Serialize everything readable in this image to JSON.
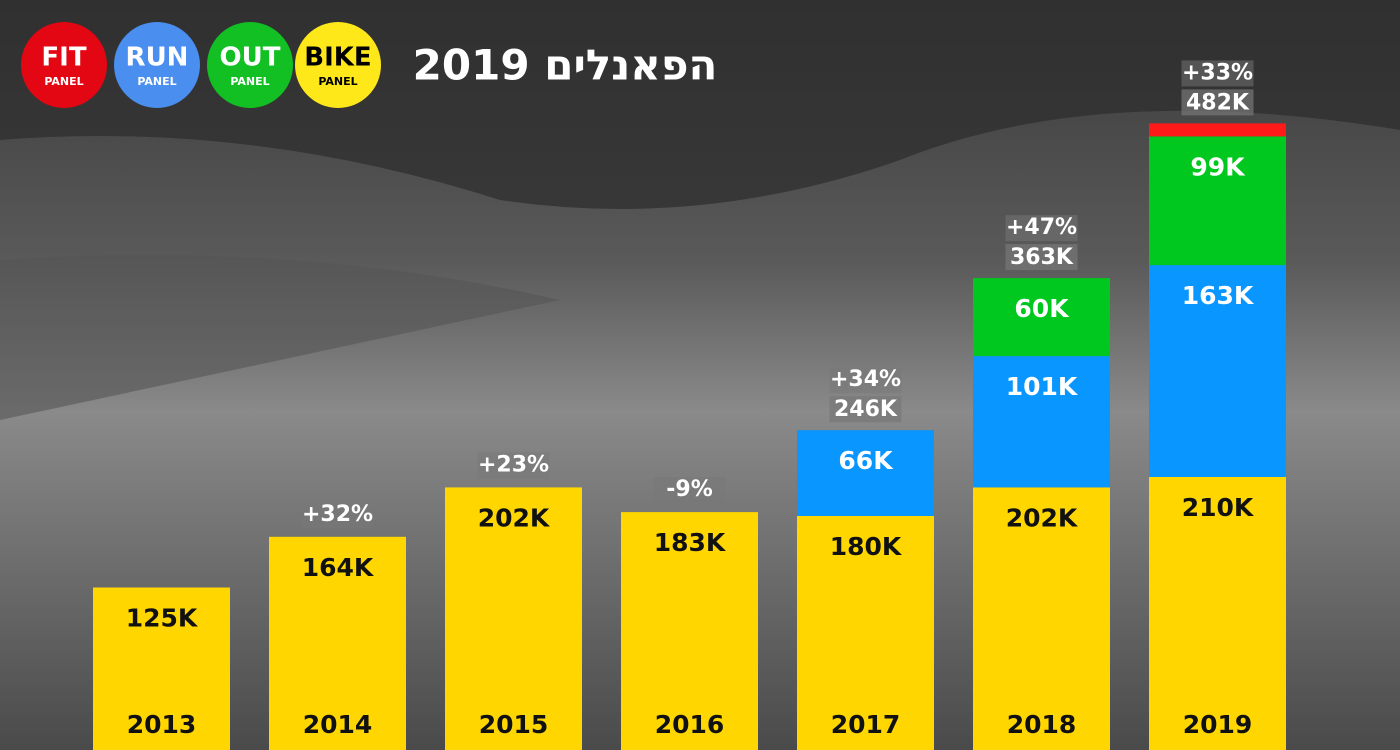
{
  "chart_data": {
    "type": "bar",
    "title": "הפאנלים 2019",
    "categories": [
      "2013",
      "2014",
      "2015",
      "2016",
      "2017",
      "2018",
      "2019"
    ],
    "series": [
      {
        "name": "BIKE",
        "sub": "PANEL",
        "color": "#ffd600",
        "legend_color": "#ffe81a",
        "values": [
          125,
          164,
          202,
          183,
          180,
          202,
          210
        ],
        "value_labels": [
          "125K",
          "164K",
          "202K",
          "183K",
          "180K",
          "202K",
          "210K"
        ]
      },
      {
        "name": "RUN",
        "sub": "PANEL",
        "color": "#0a96ff",
        "legend_color": "#4a8ef0",
        "values": [
          null,
          null,
          null,
          null,
          66,
          101,
          163
        ],
        "value_labels": [
          null,
          null,
          null,
          null,
          "66K",
          "101K",
          "163K"
        ]
      },
      {
        "name": "OUT",
        "sub": "PANEL",
        "color": "#00c81e",
        "legend_color": "#12c024",
        "values": [
          null,
          null,
          null,
          null,
          null,
          60,
          99
        ],
        "value_labels": [
          null,
          null,
          null,
          null,
          null,
          "60K",
          "99K"
        ]
      },
      {
        "name": "FIT",
        "sub": "PANEL",
        "color": "#ff1a1a",
        "legend_color": "#e30613",
        "values": [
          null,
          null,
          null,
          null,
          null,
          null,
          10
        ],
        "value_labels": [
          null,
          null,
          null,
          null,
          null,
          null,
          null
        ]
      }
    ],
    "growth": [
      null,
      32,
      23,
      -9,
      34,
      47,
      33
    ],
    "growth_labels": [
      null,
      "+32%",
      "+23%",
      "-9%",
      "+34%",
      "+47%",
      "+33%"
    ],
    "totals": [
      null,
      null,
      null,
      null,
      246,
      363,
      482
    ],
    "total_labels": [
      null,
      null,
      null,
      null,
      "246K",
      "363K",
      "482K"
    ],
    "legend_order": [
      3,
      1,
      2,
      0
    ]
  }
}
